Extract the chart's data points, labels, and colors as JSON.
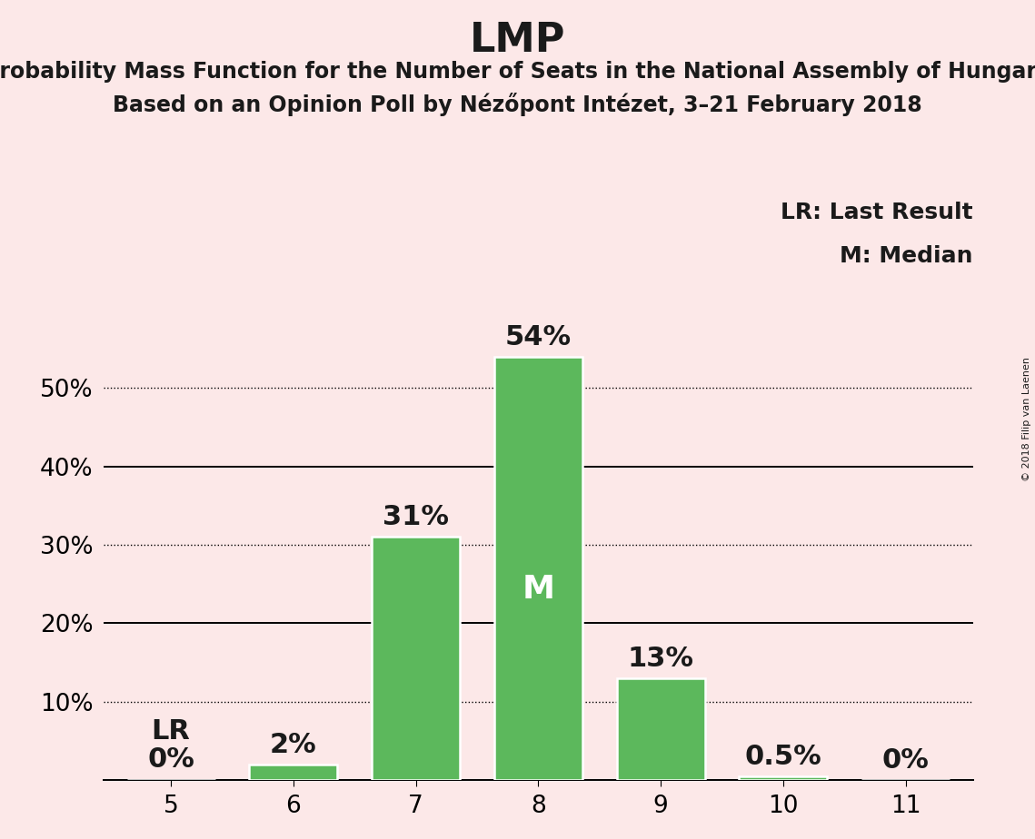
{
  "title": "LMP",
  "subtitle1": "Probability Mass Function for the Number of Seats in the National Assembly of Hungary",
  "subtitle2": "Based on an Opinion Poll by Nézőpont Intézet, 3–21 February 2018",
  "categories": [
    5,
    6,
    7,
    8,
    9,
    10,
    11
  ],
  "values": [
    0.0,
    2.0,
    31.0,
    54.0,
    13.0,
    0.5,
    0.0
  ],
  "bar_color": "#5cb85c",
  "bar_edge_color": "white",
  "background_color": "#fce8e8",
  "text_color": "#1a1a1a",
  "title_fontsize": 32,
  "subtitle_fontsize": 17,
  "tick_fontsize": 19,
  "bar_label_fontsize": 22,
  "legend_fontsize": 18,
  "median_bar_index": 3,
  "lr_bar_index": 0,
  "ylim": [
    0,
    62
  ],
  "yticks": [
    10,
    20,
    30,
    40,
    50
  ],
  "ytick_labels": [
    "10%",
    "20%",
    "30%",
    "40%",
    "50%"
  ],
  "dotted_lines": [
    10,
    30,
    50
  ],
  "solid_lines": [
    20,
    40
  ],
  "copyright_text": "© 2018 Filip van Laenen",
  "lr_label": "LR",
  "m_label": "M"
}
